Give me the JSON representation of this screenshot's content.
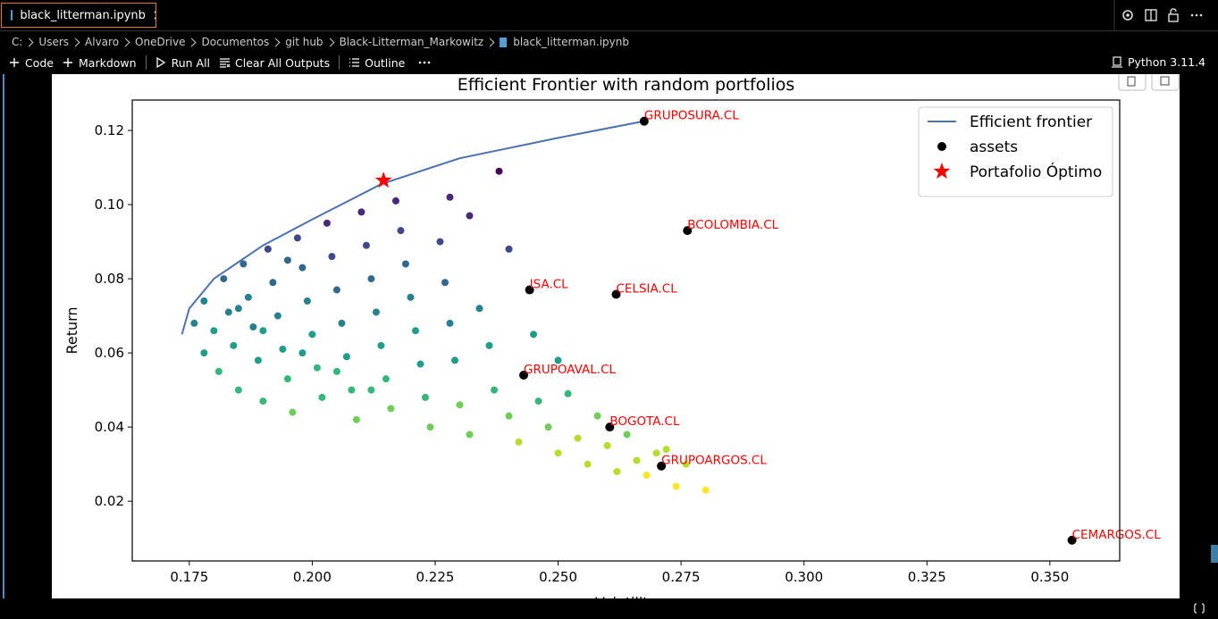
{
  "tab": {
    "title": "black_litterman.ipynb"
  },
  "breadcrumb": [
    "C:",
    "Users",
    "Alvaro",
    "OneDrive",
    "Documentos",
    "git hub",
    "Black-Litterman_Markowitz",
    "black_litterman.ipynb"
  ],
  "toolbar": {
    "items": [
      "Code",
      "Markdown",
      "Run All",
      "Clear All Outputs",
      "Outline"
    ],
    "kernel": "Python 3.11.4"
  },
  "chart_data": {
    "type": "scatter",
    "title": "Efficient Frontier with random portfolios",
    "x_label": "Volatility",
    "y_label": "Return",
    "xlim": [
      0.1634,
      0.3642
    ],
    "ylim": [
      0.0039,
      0.1282
    ],
    "xticks": [
      {
        "value": 0.175,
        "label": "0.175"
      },
      {
        "value": 0.2,
        "label": "0.200"
      },
      {
        "value": 0.225,
        "label": "0.225"
      },
      {
        "value": 0.25,
        "label": "0.250"
      },
      {
        "value": 0.275,
        "label": "0.275"
      },
      {
        "value": 0.3,
        "label": "0.300"
      },
      {
        "value": 0.325,
        "label": "0.325"
      },
      {
        "value": 0.35,
        "label": "0.350"
      }
    ],
    "yticks": [
      {
        "value": 0.02,
        "label": "0.02"
      },
      {
        "value": 0.04,
        "label": "0.04"
      },
      {
        "value": 0.06,
        "label": "0.06"
      },
      {
        "value": 0.08,
        "label": "0.08"
      },
      {
        "value": 0.1,
        "label": "0.10"
      },
      {
        "value": 0.12,
        "label": "0.12"
      }
    ],
    "legend": "upper right",
    "label_color": "#ff0000",
    "series": [
      {
        "type": "scatter",
        "colormap": "viridis",
        "x": [
          0.176,
          0.178,
          0.178,
          0.18,
          0.181,
          0.182,
          0.183,
          0.184,
          0.185,
          0.186,
          0.187,
          0.188,
          0.189,
          0.19,
          0.191,
          0.192,
          0.193,
          0.194,
          0.195,
          0.196,
          0.197,
          0.198,
          0.199,
          0.2,
          0.201,
          0.202,
          0.203,
          0.204,
          0.205,
          0.206,
          0.207,
          0.208,
          0.209,
          0.21,
          0.211,
          0.212,
          0.213,
          0.214,
          0.215,
          0.216,
          0.218,
          0.219,
          0.22,
          0.221,
          0.222,
          0.223,
          0.224,
          0.226,
          0.227,
          0.228,
          0.229,
          0.23,
          0.232,
          0.234,
          0.236,
          0.237,
          0.238,
          0.24,
          0.24,
          0.242,
          0.245,
          0.246,
          0.248,
          0.25,
          0.25,
          0.252,
          0.254,
          0.256,
          0.258,
          0.26,
          0.262,
          0.264,
          0.266,
          0.268,
          0.27,
          0.272,
          0.274,
          0.276,
          0.28,
          0.228,
          0.232,
          0.217,
          0.195,
          0.185,
          0.19,
          0.198,
          0.205,
          0.212
        ],
        "values": [
          0.068,
          0.06,
          0.074,
          0.066,
          0.055,
          0.08,
          0.071,
          0.062,
          0.05,
          0.084,
          0.075,
          0.067,
          0.058,
          0.047,
          0.088,
          0.079,
          0.07,
          0.061,
          0.053,
          0.044,
          0.091,
          0.083,
          0.074,
          0.065,
          0.056,
          0.048,
          0.095,
          0.086,
          0.077,
          0.068,
          0.059,
          0.05,
          0.042,
          0.098,
          0.089,
          0.08,
          0.071,
          0.062,
          0.053,
          0.045,
          0.093,
          0.084,
          0.075,
          0.066,
          0.057,
          0.048,
          0.04,
          0.09,
          0.079,
          0.068,
          0.058,
          0.046,
          0.038,
          0.072,
          0.062,
          0.05,
          0.109,
          0.088,
          0.043,
          0.036,
          0.065,
          0.047,
          0.04,
          0.058,
          0.033,
          0.049,
          0.037,
          0.03,
          0.043,
          0.035,
          0.028,
          0.038,
          0.031,
          0.027,
          0.033,
          0.034,
          0.024,
          0.03,
          0.023,
          0.102,
          0.097,
          0.101,
          0.085,
          0.072,
          0.066,
          0.06,
          0.055,
          0.05
        ]
      },
      {
        "type": "line",
        "name": "Efficient frontier",
        "color": "#4c72b0",
        "x": [
          0.1735,
          0.175,
          0.18,
          0.19,
          0.2,
          0.214,
          0.23,
          0.25,
          0.2675
        ],
        "values": [
          0.065,
          0.072,
          0.08,
          0.089,
          0.096,
          0.1055,
          0.1125,
          0.118,
          0.1225
        ]
      },
      {
        "type": "scatter",
        "name": "assets",
        "color": "#000000",
        "x": [
          0.2675,
          0.2763,
          0.2442,
          0.2618,
          0.243,
          0.2605,
          0.271,
          0.3545
        ],
        "values": [
          0.1225,
          0.093,
          0.077,
          0.0758,
          0.054,
          0.04,
          0.0295,
          0.0095
        ],
        "labels": [
          "GRUPOSURA.CL",
          "BCOLOMBIA.CL",
          "ISA.CL",
          "CELSIA.CL",
          "GRUPOAVAL.CL",
          "BOGOTA.CL",
          "GRUPOARGOS.CL",
          "CEMARGOS.CL"
        ]
      },
      {
        "type": "star",
        "name": "Portafolio Óptimo",
        "color": "#ff0000",
        "x": [
          0.2145
        ],
        "values": [
          0.1065
        ]
      }
    ]
  }
}
